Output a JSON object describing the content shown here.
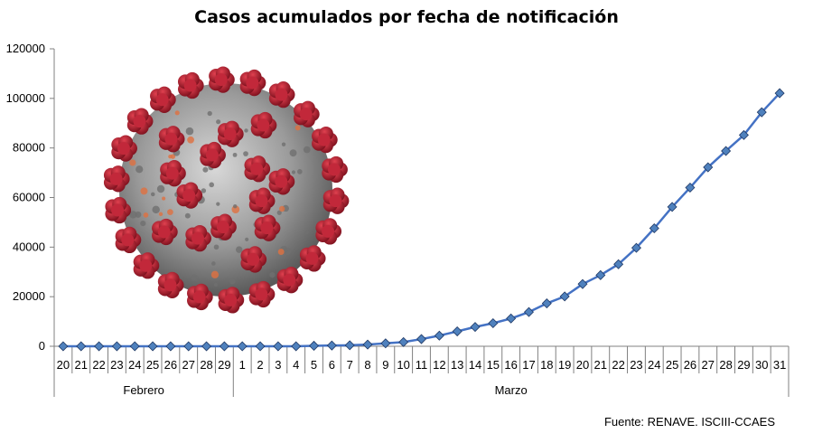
{
  "chart_data": {
    "type": "line",
    "title": "Casos acumulados por fecha de notificación",
    "xlabel": "",
    "ylabel": "",
    "ylim": [
      0,
      120000
    ],
    "yticks": [
      0,
      20000,
      40000,
      60000,
      80000,
      100000,
      120000
    ],
    "grid": false,
    "categories": [
      "20",
      "21",
      "22",
      "23",
      "24",
      "25",
      "26",
      "27",
      "28",
      "29",
      "1",
      "2",
      "3",
      "4",
      "5",
      "6",
      "7",
      "8",
      "9",
      "10",
      "11",
      "12",
      "13",
      "14",
      "15",
      "16",
      "17",
      "18",
      "19",
      "20",
      "21",
      "22",
      "23",
      "24",
      "25",
      "26",
      "27",
      "28",
      "29",
      "30",
      "31"
    ],
    "months": [
      {
        "label": "Febrero",
        "count": 10
      },
      {
        "label": "Marzo",
        "count": 31
      }
    ],
    "series": [
      {
        "color": "#4472C4",
        "values": [
          0,
          0,
          0,
          0,
          0,
          0,
          0,
          0,
          0,
          0,
          0,
          0,
          0,
          0,
          200,
          300,
          400,
          700,
          1200,
          1700,
          2900,
          4300,
          6000,
          7800,
          9300,
          11200,
          13800,
          17300,
          20100,
          25100,
          28700,
          33100,
          39700,
          47600,
          56200,
          64000,
          72200,
          78800,
          85200,
          94400,
          102100
        ]
      }
    ]
  },
  "source": "Fuente: RENAVE. ISCIII-CCAES",
  "colors": {
    "line": "#4472C4",
    "marker_fill": "#4F81BD",
    "marker_stroke": "#1F3864",
    "virus_body": "#9a9a9a",
    "virus_spike": "#b01e2e"
  },
  "image": {
    "description_icon": "coronavirus-icon"
  }
}
